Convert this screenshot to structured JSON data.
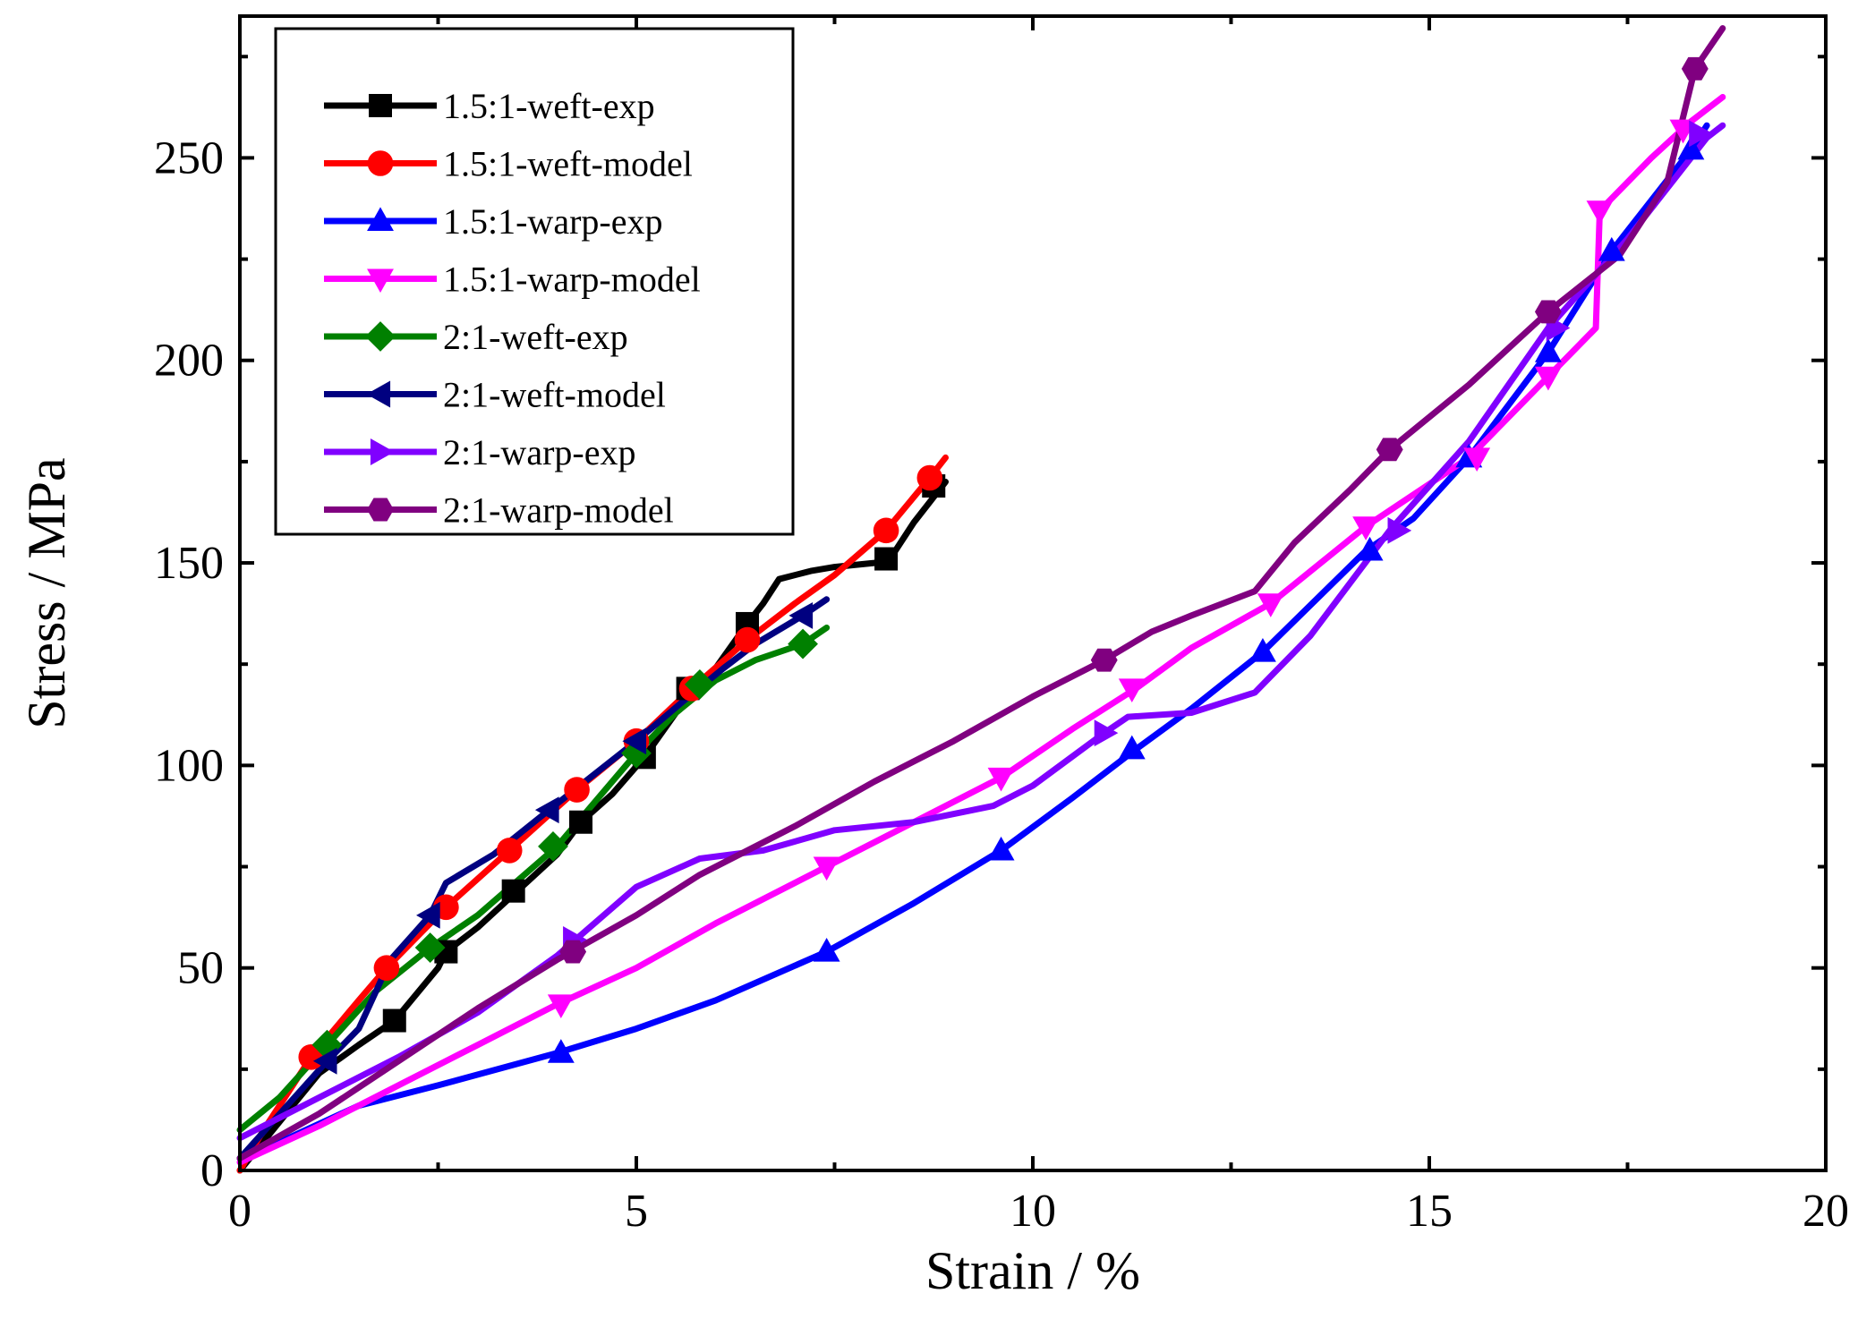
{
  "chart_data": {
    "type": "line",
    "title": "",
    "xlabel": "Strain / %",
    "ylabel": "Stress / MPa",
    "xlim": [
      0,
      20
    ],
    "ylim": [
      0,
      285
    ],
    "xticks": [
      0,
      5,
      10,
      15,
      20
    ],
    "yticks": [
      0,
      50,
      100,
      150,
      200,
      250
    ],
    "grid": false,
    "legend_position": "top-left",
    "series": [
      {
        "name": "1.5:1-weft-exp",
        "color": "#000000",
        "marker": "square",
        "points": [
          [
            0,
            0
          ],
          [
            0.5,
            12
          ],
          [
            1,
            24
          ],
          [
            1.5,
            31
          ],
          [
            1.95,
            37
          ],
          [
            2.5,
            50
          ],
          [
            2.6,
            54
          ],
          [
            3,
            60
          ],
          [
            3.5,
            69
          ],
          [
            4,
            78
          ],
          [
            4.3,
            86
          ],
          [
            4.7,
            93
          ],
          [
            5.1,
            102
          ],
          [
            5.5,
            113
          ],
          [
            5.7,
            119
          ],
          [
            6,
            124
          ],
          [
            6.4,
            135
          ],
          [
            6.6,
            140
          ],
          [
            6.8,
            146
          ],
          [
            7.2,
            148
          ],
          [
            7.5,
            149
          ],
          [
            8,
            150
          ],
          [
            8.2,
            151
          ],
          [
            8.5,
            160
          ],
          [
            8.9,
            170
          ]
        ],
        "markers": [
          [
            1.95,
            37
          ],
          [
            2.6,
            54
          ],
          [
            3.45,
            69
          ],
          [
            4.3,
            86
          ],
          [
            5.1,
            102
          ],
          [
            5.65,
            119
          ],
          [
            6.4,
            135
          ],
          [
            8.15,
            151
          ],
          [
            8.75,
            169
          ]
        ]
      },
      {
        "name": "1.5:1-weft-model",
        "color": "#ff0000",
        "marker": "circle",
        "points": [
          [
            0,
            0
          ],
          [
            0.3,
            10
          ],
          [
            0.9,
            28
          ],
          [
            1.5,
            42
          ],
          [
            1.85,
            50
          ],
          [
            2.6,
            65
          ],
          [
            3.4,
            79
          ],
          [
            4.25,
            94
          ],
          [
            5,
            106
          ],
          [
            5.7,
            119
          ],
          [
            6.4,
            131
          ],
          [
            7,
            140
          ],
          [
            7.5,
            147
          ],
          [
            8.15,
            158
          ],
          [
            8.7,
            171
          ],
          [
            8.9,
            176
          ]
        ],
        "markers": [
          [
            0.9,
            28
          ],
          [
            1.85,
            50
          ],
          [
            2.6,
            65
          ],
          [
            3.4,
            79
          ],
          [
            4.25,
            94
          ],
          [
            5,
            106
          ],
          [
            5.7,
            119
          ],
          [
            6.4,
            131
          ],
          [
            8.15,
            158
          ],
          [
            8.7,
            171
          ]
        ]
      },
      {
        "name": "1.5:1-warp-exp",
        "color": "#0000ff",
        "marker": "triangle-up",
        "points": [
          [
            0,
            3
          ],
          [
            0.5,
            7
          ],
          [
            1.5,
            16
          ],
          [
            2.5,
            21
          ],
          [
            4,
            29
          ],
          [
            5,
            35
          ],
          [
            6,
            42
          ],
          [
            7.4,
            54
          ],
          [
            8.5,
            66
          ],
          [
            9.6,
            79
          ],
          [
            10.5,
            92
          ],
          [
            11.3,
            104
          ],
          [
            12,
            114
          ],
          [
            12.9,
            128
          ],
          [
            14.2,
            153
          ],
          [
            14.8,
            161
          ],
          [
            15.5,
            176
          ],
          [
            16.5,
            202
          ],
          [
            17.3,
            227
          ],
          [
            18.3,
            252
          ],
          [
            18.5,
            258
          ]
        ],
        "markers": [
          [
            4.05,
            29
          ],
          [
            7.4,
            54
          ],
          [
            9.6,
            79
          ],
          [
            11.25,
            104
          ],
          [
            12.9,
            128
          ],
          [
            14.25,
            153
          ],
          [
            15.5,
            176
          ],
          [
            16.5,
            202
          ],
          [
            17.3,
            227
          ],
          [
            18.3,
            252
          ]
        ]
      },
      {
        "name": "1.5:1-warp-model",
        "color": "#ff00ff",
        "marker": "triangle-down",
        "points": [
          [
            0,
            2
          ],
          [
            1,
            11
          ],
          [
            2,
            21
          ],
          [
            3,
            31
          ],
          [
            4,
            41
          ],
          [
            5,
            50
          ],
          [
            6,
            61
          ],
          [
            7.4,
            75
          ],
          [
            8.5,
            86
          ],
          [
            9.6,
            97
          ],
          [
            10.5,
            109
          ],
          [
            11.3,
            119
          ],
          [
            12,
            129
          ],
          [
            13,
            140
          ],
          [
            14.2,
            159
          ],
          [
            15.5,
            176
          ],
          [
            16.5,
            196
          ],
          [
            17.1,
            208
          ],
          [
            17.15,
            237
          ],
          [
            17.8,
            250
          ],
          [
            18.3,
            259
          ],
          [
            18.7,
            265
          ]
        ],
        "markers": [
          [
            4.05,
            41
          ],
          [
            7.4,
            75
          ],
          [
            9.6,
            97
          ],
          [
            11.25,
            119
          ],
          [
            13,
            140
          ],
          [
            14.2,
            159
          ],
          [
            15.6,
            176
          ],
          [
            16.5,
            196
          ],
          [
            17.15,
            237
          ],
          [
            18.2,
            257
          ]
        ]
      },
      {
        "name": "2:1-weft-exp",
        "color": "#008000",
        "marker": "diamond",
        "points": [
          [
            0,
            10
          ],
          [
            0.5,
            18
          ],
          [
            1.1,
            31
          ],
          [
            1.7,
            44
          ],
          [
            2.4,
            55
          ],
          [
            3,
            63
          ],
          [
            4,
            80
          ],
          [
            5,
            103
          ],
          [
            5.5,
            113
          ],
          [
            6,
            121
          ],
          [
            6.5,
            126
          ],
          [
            7.1,
            130
          ],
          [
            7.4,
            134
          ]
        ],
        "markers": [
          [
            1.1,
            31
          ],
          [
            2.4,
            55
          ],
          [
            3.95,
            80
          ],
          [
            5,
            103
          ],
          [
            5.8,
            120
          ],
          [
            7.1,
            130
          ]
        ]
      },
      {
        "name": "2:1-weft-model",
        "color": "#000080",
        "marker": "triangle-left",
        "points": [
          [
            0,
            3
          ],
          [
            1.1,
            27
          ],
          [
            1.5,
            35
          ],
          [
            1.9,
            52
          ],
          [
            2.4,
            63
          ],
          [
            2.6,
            71
          ],
          [
            3.2,
            78
          ],
          [
            3.9,
            89
          ],
          [
            5,
            106
          ],
          [
            5.6,
            116
          ],
          [
            6.1,
            124
          ],
          [
            6.5,
            130
          ],
          [
            7.1,
            137
          ],
          [
            7.4,
            141
          ]
        ],
        "markers": [
          [
            1.1,
            27
          ],
          [
            2.4,
            63
          ],
          [
            3.9,
            89
          ],
          [
            5,
            106
          ],
          [
            7.1,
            137
          ]
        ]
      },
      {
        "name": "2:1-warp-exp",
        "color": "#8000ff",
        "marker": "triangle-right",
        "points": [
          [
            0,
            8
          ],
          [
            1,
            18
          ],
          [
            2,
            28
          ],
          [
            3,
            39
          ],
          [
            4,
            53
          ],
          [
            5,
            70
          ],
          [
            5.8,
            77
          ],
          [
            6.6,
            79
          ],
          [
            7.5,
            84
          ],
          [
            8.5,
            86
          ],
          [
            9.5,
            90
          ],
          [
            10,
            95
          ],
          [
            10.9,
            108
          ],
          [
            11.2,
            112
          ],
          [
            12,
            113
          ],
          [
            12.8,
            118
          ],
          [
            13.5,
            132
          ],
          [
            14.5,
            158
          ],
          [
            15.5,
            180
          ],
          [
            16.5,
            208
          ],
          [
            17.5,
            230
          ],
          [
            18.5,
            255
          ],
          [
            18.7,
            258
          ]
        ],
        "markers": [
          [
            4.2,
            57
          ],
          [
            10.9,
            108
          ],
          [
            14.6,
            158
          ],
          [
            16.6,
            208
          ],
          [
            18.4,
            256
          ]
        ]
      },
      {
        "name": "2:1-warp-model",
        "color": "#800080",
        "marker": "hexagon",
        "points": [
          [
            0,
            3
          ],
          [
            1,
            14
          ],
          [
            2,
            27
          ],
          [
            3,
            40
          ],
          [
            4,
            52
          ],
          [
            5,
            63
          ],
          [
            5.8,
            73
          ],
          [
            7,
            85
          ],
          [
            8,
            96
          ],
          [
            9,
            106
          ],
          [
            10,
            117
          ],
          [
            10.9,
            126
          ],
          [
            11.5,
            133
          ],
          [
            12,
            137
          ],
          [
            12.8,
            143
          ],
          [
            13.3,
            155
          ],
          [
            14,
            168
          ],
          [
            14.5,
            178
          ],
          [
            15.5,
            194
          ],
          [
            16.5,
            212
          ],
          [
            17.4,
            226
          ],
          [
            18,
            244
          ],
          [
            18.35,
            272
          ],
          [
            18.7,
            282
          ]
        ],
        "markers": [
          [
            4.2,
            54
          ],
          [
            10.9,
            126
          ],
          [
            14.5,
            178
          ],
          [
            16.5,
            212
          ],
          [
            18.35,
            272
          ]
        ]
      }
    ]
  }
}
